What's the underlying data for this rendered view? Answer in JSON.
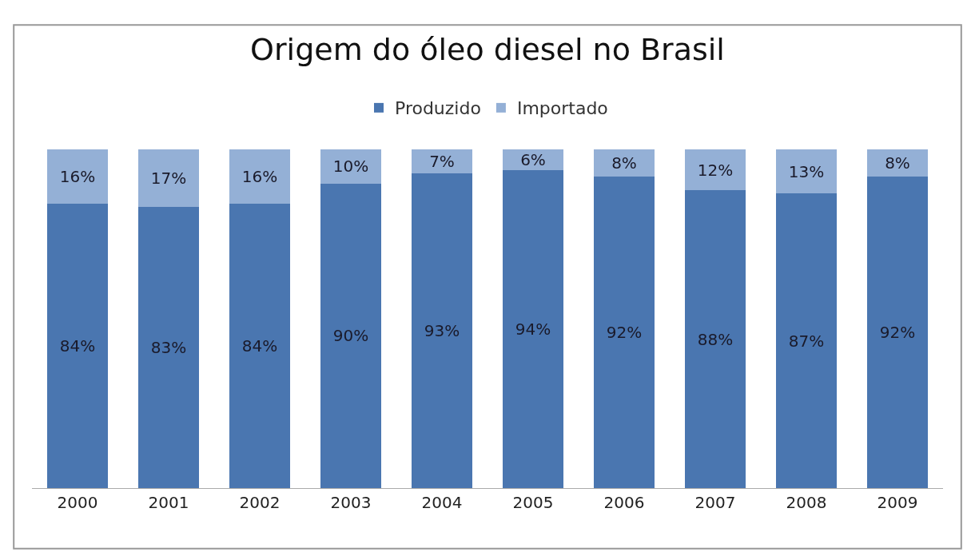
{
  "chart_data": {
    "type": "bar",
    "title": "Origem do óleo diesel no Brasil",
    "categories": [
      "2000",
      "2001",
      "2002",
      "2003",
      "2004",
      "2005",
      "2006",
      "2007",
      "2008",
      "2009"
    ],
    "stacked": true,
    "legend": "top",
    "series": [
      {
        "name": "Produzido",
        "color": "#4a76b0",
        "values": [
          84,
          83,
          84,
          90,
          93,
          94,
          92,
          88,
          87,
          92
        ],
        "value_labels": [
          "84%",
          "83%",
          "84%",
          "90%",
          "93%",
          "94%",
          "92%",
          "88%",
          "87%",
          "92%"
        ]
      },
      {
        "name": "Importado",
        "color": "#94b0d6",
        "values": [
          16,
          17,
          16,
          10,
          7,
          6,
          8,
          12,
          13,
          8
        ],
        "value_labels": [
          "16%",
          "17%",
          "16%",
          "10%",
          "7%",
          "6%",
          "8%",
          "12%",
          "13%",
          "8%"
        ]
      }
    ]
  }
}
